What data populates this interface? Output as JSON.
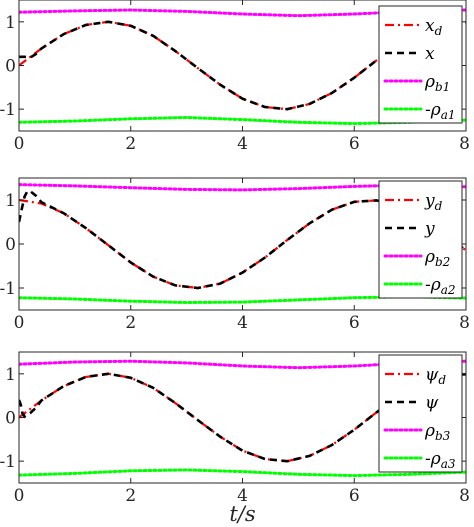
{
  "chart_data": [
    {
      "type": "line",
      "xlim": [
        0,
        8
      ],
      "ylim": [
        -1.5,
        1.5
      ],
      "xticks": [
        0,
        2,
        4,
        6,
        8
      ],
      "yticks": [
        -1,
        0,
        1
      ],
      "x_tick_labels": [
        "0",
        "2",
        "4",
        "6",
        "8"
      ],
      "y_tick_labels": [
        "-1",
        "0",
        "1"
      ],
      "legend_position": "right",
      "series": [
        {
          "name": "x_d",
          "legend_main": "x",
          "legend_sub": "d",
          "legend_prefix": "",
          "color": "#ff0000",
          "style": "dashdot",
          "x": [
            0,
            0.4,
            0.8,
            1.2,
            1.6,
            2.0,
            2.4,
            2.8,
            3.2,
            3.6,
            4.0,
            4.4,
            4.8,
            5.2,
            5.6,
            6.0,
            6.4,
            6.8,
            7.2,
            7.6,
            8.0
          ],
          "y": [
            0.0,
            0.39,
            0.72,
            0.93,
            1.0,
            0.91,
            0.68,
            0.33,
            -0.06,
            -0.44,
            -0.76,
            -0.95,
            -1.0,
            -0.88,
            -0.63,
            -0.28,
            0.12,
            0.49,
            0.79,
            0.97,
            0.99
          ]
        },
        {
          "name": "x",
          "legend_main": "x",
          "legend_sub": "",
          "legend_prefix": "",
          "color": "#000000",
          "style": "dashed",
          "x": [
            0,
            0.05,
            0.1,
            0.2,
            0.3,
            0.4,
            0.8,
            1.2,
            1.6,
            2.0,
            2.4,
            2.8,
            3.2,
            3.6,
            4.0,
            4.4,
            4.8,
            5.2,
            5.6,
            6.0,
            6.4,
            6.8,
            7.2,
            7.6,
            8.0
          ],
          "y": [
            0.2,
            0.2,
            0.2,
            0.18,
            0.26,
            0.39,
            0.72,
            0.93,
            1.0,
            0.91,
            0.68,
            0.33,
            -0.06,
            -0.44,
            -0.76,
            -0.95,
            -1.0,
            -0.88,
            -0.63,
            -0.28,
            0.12,
            0.49,
            0.79,
            0.97,
            0.99
          ]
        },
        {
          "name": "ρ_b1",
          "legend_main": "ρ",
          "legend_sub": "b1",
          "legend_prefix": "",
          "color": "#ff00ff",
          "style": "dotted",
          "x": [
            0,
            1,
            2,
            3,
            4,
            5,
            6,
            7,
            8
          ],
          "y": [
            1.22,
            1.25,
            1.27,
            1.24,
            1.18,
            1.14,
            1.18,
            1.24,
            1.27
          ]
        },
        {
          "name": "-ρ_a1",
          "legend_main": "ρ",
          "legend_sub": "a1",
          "legend_prefix": "-",
          "color": "#00ff00",
          "style": "dotted",
          "x": [
            0,
            1,
            2,
            3,
            4,
            5,
            6,
            7,
            8
          ],
          "y": [
            -1.3,
            -1.27,
            -1.22,
            -1.19,
            -1.24,
            -1.3,
            -1.33,
            -1.3,
            -1.25
          ]
        }
      ]
    },
    {
      "type": "line",
      "xlim": [
        0,
        8
      ],
      "ylim": [
        -1.5,
        1.5
      ],
      "xticks": [
        0,
        2,
        4,
        6,
        8
      ],
      "yticks": [
        -1,
        0,
        1
      ],
      "x_tick_labels": [
        "0",
        "2",
        "4",
        "6",
        "8"
      ],
      "y_tick_labels": [
        "-1",
        "0",
        "1"
      ],
      "legend_position": "right",
      "series": [
        {
          "name": "y_d",
          "legend_main": "y",
          "legend_sub": "d",
          "legend_prefix": "",
          "color": "#ff0000",
          "style": "dashdot",
          "x": [
            0,
            0.4,
            0.8,
            1.2,
            1.6,
            2.0,
            2.4,
            2.8,
            3.2,
            3.6,
            4.0,
            4.4,
            4.8,
            5.2,
            5.6,
            6.0,
            6.4,
            6.8,
            7.2,
            7.6,
            8.0
          ],
          "y": [
            1.0,
            0.92,
            0.7,
            0.36,
            -0.03,
            -0.42,
            -0.74,
            -0.94,
            -1.0,
            -0.9,
            -0.65,
            -0.31,
            0.09,
            0.47,
            0.78,
            0.96,
            0.99,
            0.87,
            0.61,
            0.26,
            -0.15
          ]
        },
        {
          "name": "y",
          "legend_main": "y",
          "legend_sub": "",
          "legend_prefix": "",
          "color": "#000000",
          "style": "dashed",
          "x": [
            0,
            0.05,
            0.1,
            0.15,
            0.2,
            0.3,
            0.4,
            0.8,
            1.2,
            1.6,
            2.0,
            2.4,
            2.8,
            3.2,
            3.6,
            4.0,
            4.4,
            4.8,
            5.2,
            5.6,
            6.0,
            6.4,
            6.8,
            7.2,
            7.6,
            8.0
          ],
          "y": [
            0.5,
            0.8,
            1.08,
            1.2,
            1.2,
            1.1,
            0.95,
            0.7,
            0.36,
            -0.03,
            -0.42,
            -0.74,
            -0.94,
            -1.0,
            -0.9,
            -0.65,
            -0.31,
            0.09,
            0.47,
            0.78,
            0.96,
            0.99,
            0.87,
            0.61,
            0.26,
            -0.15
          ]
        },
        {
          "name": "ρ_b2",
          "legend_main": "ρ",
          "legend_sub": "b2",
          "legend_prefix": "",
          "color": "#ff00ff",
          "style": "dotted",
          "x": [
            0,
            1,
            2,
            3,
            4,
            5,
            6,
            7,
            8
          ],
          "y": [
            1.35,
            1.32,
            1.28,
            1.24,
            1.23,
            1.26,
            1.31,
            1.34,
            1.3
          ]
        },
        {
          "name": "-ρ_a2",
          "legend_main": "ρ",
          "legend_sub": "a2",
          "legend_prefix": "-",
          "color": "#00ff00",
          "style": "dotted",
          "x": [
            0,
            1,
            2,
            3,
            4,
            5,
            6,
            7,
            8
          ],
          "y": [
            -1.22,
            -1.25,
            -1.3,
            -1.33,
            -1.32,
            -1.27,
            -1.22,
            -1.2,
            -1.23
          ]
        }
      ]
    },
    {
      "type": "line",
      "xlim": [
        0,
        8
      ],
      "ylim": [
        -1.5,
        1.5
      ],
      "xticks": [
        0,
        2,
        4,
        6,
        8
      ],
      "yticks": [
        -1,
        0,
        1
      ],
      "x_tick_labels": [
        "0",
        "2",
        "4",
        "6",
        "8"
      ],
      "y_tick_labels": [
        "-1",
        "0",
        "1"
      ],
      "xlabel": "t/s",
      "legend_position": "right",
      "series": [
        {
          "name": "ψ_d",
          "legend_main": "ψ",
          "legend_sub": "d",
          "legend_prefix": "",
          "color": "#ff0000",
          "style": "dashdot",
          "x": [
            0,
            0.4,
            0.8,
            1.2,
            1.6,
            2.0,
            2.4,
            2.8,
            3.2,
            3.6,
            4.0,
            4.4,
            4.8,
            5.2,
            5.6,
            6.0,
            6.4,
            6.8,
            7.2,
            7.6,
            8.0
          ],
          "y": [
            0.0,
            0.39,
            0.72,
            0.93,
            1.0,
            0.91,
            0.68,
            0.33,
            -0.06,
            -0.44,
            -0.76,
            -0.95,
            -1.0,
            -0.88,
            -0.63,
            -0.28,
            0.12,
            0.49,
            0.79,
            0.97,
            0.99
          ]
        },
        {
          "name": "ψ",
          "legend_main": "ψ",
          "legend_sub": "",
          "legend_prefix": "",
          "color": "#000000",
          "style": "dashed",
          "x": [
            0,
            0.03,
            0.06,
            0.1,
            0.15,
            0.2,
            0.3,
            0.4,
            0.8,
            1.2,
            1.6,
            2.0,
            2.4,
            2.8,
            3.2,
            3.6,
            4.0,
            4.4,
            4.8,
            5.2,
            5.6,
            6.0,
            6.4,
            6.8,
            7.2,
            7.6,
            8.0
          ],
          "y": [
            0.4,
            0.3,
            0.1,
            0.02,
            0.06,
            0.1,
            0.22,
            0.39,
            0.72,
            0.93,
            1.0,
            0.91,
            0.68,
            0.33,
            -0.06,
            -0.44,
            -0.76,
            -0.95,
            -1.0,
            -0.88,
            -0.63,
            -0.28,
            0.12,
            0.49,
            0.79,
            0.97,
            0.99
          ]
        },
        {
          "name": "ρ_b3",
          "legend_main": "ρ",
          "legend_sub": "b3",
          "legend_prefix": "",
          "color": "#ff00ff",
          "style": "dotted",
          "x": [
            0,
            1,
            2,
            3,
            4,
            5,
            6,
            7,
            8
          ],
          "y": [
            1.22,
            1.27,
            1.29,
            1.25,
            1.18,
            1.14,
            1.18,
            1.25,
            1.29
          ]
        },
        {
          "name": "-ρ_a3",
          "legend_main": "ρ",
          "legend_sub": "a3",
          "legend_prefix": "-",
          "color": "#00ff00",
          "style": "dotted",
          "x": [
            0,
            1,
            2,
            3,
            4,
            5,
            6,
            7,
            8
          ],
          "y": [
            -1.32,
            -1.28,
            -1.22,
            -1.2,
            -1.24,
            -1.3,
            -1.33,
            -1.3,
            -1.25
          ]
        }
      ]
    }
  ]
}
